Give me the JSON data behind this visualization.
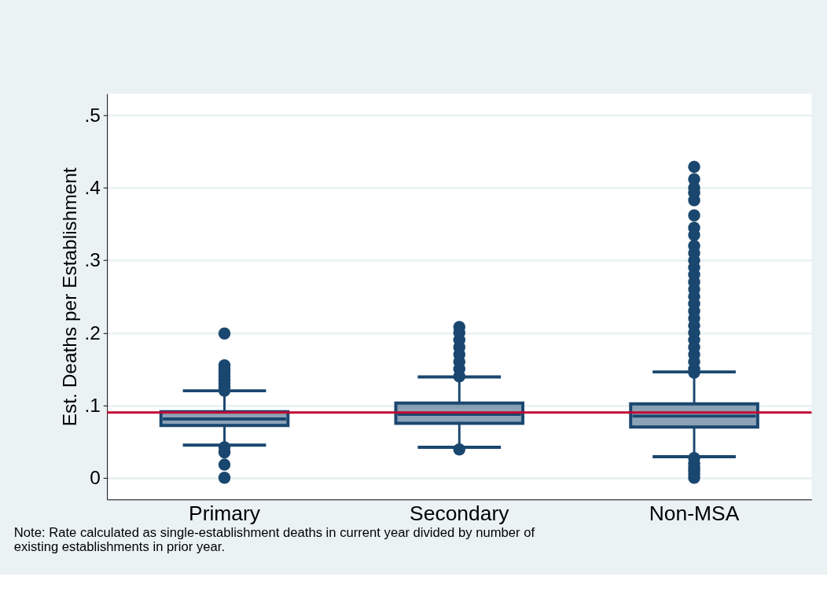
{
  "chart_data": {
    "type": "box",
    "ylabel": "Est. Deaths per Establishment",
    "categories": [
      "Primary",
      "Secondary",
      "Non-MSA"
    ],
    "series": [
      {
        "color": "#1a476f",
        "boxes": [
          {
            "low": 0.045,
            "q1": 0.072,
            "median": 0.081,
            "q3": 0.091,
            "high": 0.12,
            "outliers": [
              0.199,
              0.155,
              0.15,
              0.145,
              0.14,
              0.135,
              0.13,
              0.125,
              0.12,
              0.042,
              0.035,
              0.018,
              0.0
            ]
          },
          {
            "low": 0.042,
            "q1": 0.075,
            "median": 0.0875,
            "q3": 0.103,
            "high": 0.139,
            "outliers": [
              0.208,
              0.2,
              0.19,
              0.18,
              0.17,
              0.16,
              0.15,
              0.14,
              0.039
            ]
          },
          {
            "low": 0.029,
            "q1": 0.07,
            "median": 0.085,
            "q3": 0.102,
            "high": 0.146,
            "outliers": [
              0.429,
              0.412,
              0.4,
              0.393,
              0.383,
              0.362,
              0.345,
              0.335,
              0.32,
              0.31,
              0.3,
              0.29,
              0.28,
              0.27,
              0.26,
              0.25,
              0.24,
              0.23,
              0.22,
              0.21,
              0.2,
              0.19,
              0.18,
              0.17,
              0.16,
              0.15,
              0.145,
              0.027,
              0.02,
              0.015,
              0.01,
              0.005,
              0.0
            ]
          }
        ]
      }
    ],
    "ylim": [
      -0.03,
      0.53
    ],
    "yticks": [
      0,
      {
        "value": 0.1,
        "label": ".1"
      },
      {
        "value": 0.2,
        "label": ".2"
      },
      {
        "value": 0.3,
        "label": ".3"
      },
      {
        "value": 0.4,
        "label": ".4"
      },
      {
        "value": 0.5,
        "label": ".5"
      }
    ],
    "grid": "y",
    "ref_lines": [
      {
        "axis": "y",
        "value": 0.09,
        "color": "#c10534"
      }
    ],
    "annotations": [
      "Note: Rate calculated as single-establishment deaths in current year divided by number of existing establishments in prior year."
    ]
  }
}
